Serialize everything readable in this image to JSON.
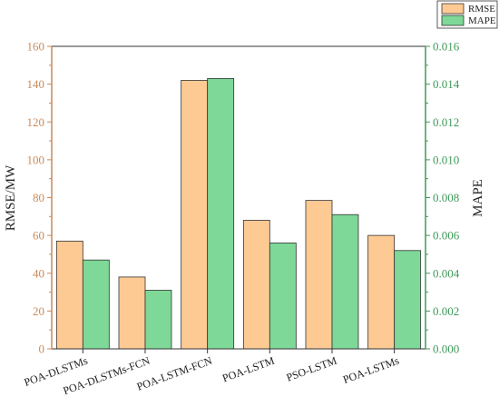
{
  "chart_data": {
    "type": "bar",
    "categories": [
      "POA-DLSTMs",
      "POA-DLSTMs-FCN",
      "POA-LSTM-FCN",
      "POA-LSTM",
      "PSO-LSTM",
      "POA-LSTMs"
    ],
    "series": [
      {
        "name": "RMSE",
        "axis": "left",
        "color": "#fdca94",
        "values": [
          57,
          38,
          142,
          68,
          78.5,
          60
        ]
      },
      {
        "name": "MAPE",
        "axis": "right",
        "color": "#7ed898",
        "values": [
          0.0047,
          0.0031,
          0.0143,
          0.0056,
          0.0071,
          0.0052
        ]
      }
    ],
    "ylabel": "RMSE/MW",
    "y2label": "MAPE",
    "ylim": [
      0,
      160
    ],
    "y2lim": [
      0,
      0.016
    ],
    "yticks": [
      "0",
      "20",
      "40",
      "60",
      "80",
      "100",
      "120",
      "140",
      "160"
    ],
    "y2ticks": [
      "0.000",
      "0.002",
      "0.004",
      "0.006",
      "0.008",
      "0.010",
      "0.012",
      "0.014",
      "0.016"
    ],
    "left_axis_color": "#c98a5a",
    "right_axis_color": "#3f9a5a",
    "legend_position": "top-right",
    "grid": false
  }
}
